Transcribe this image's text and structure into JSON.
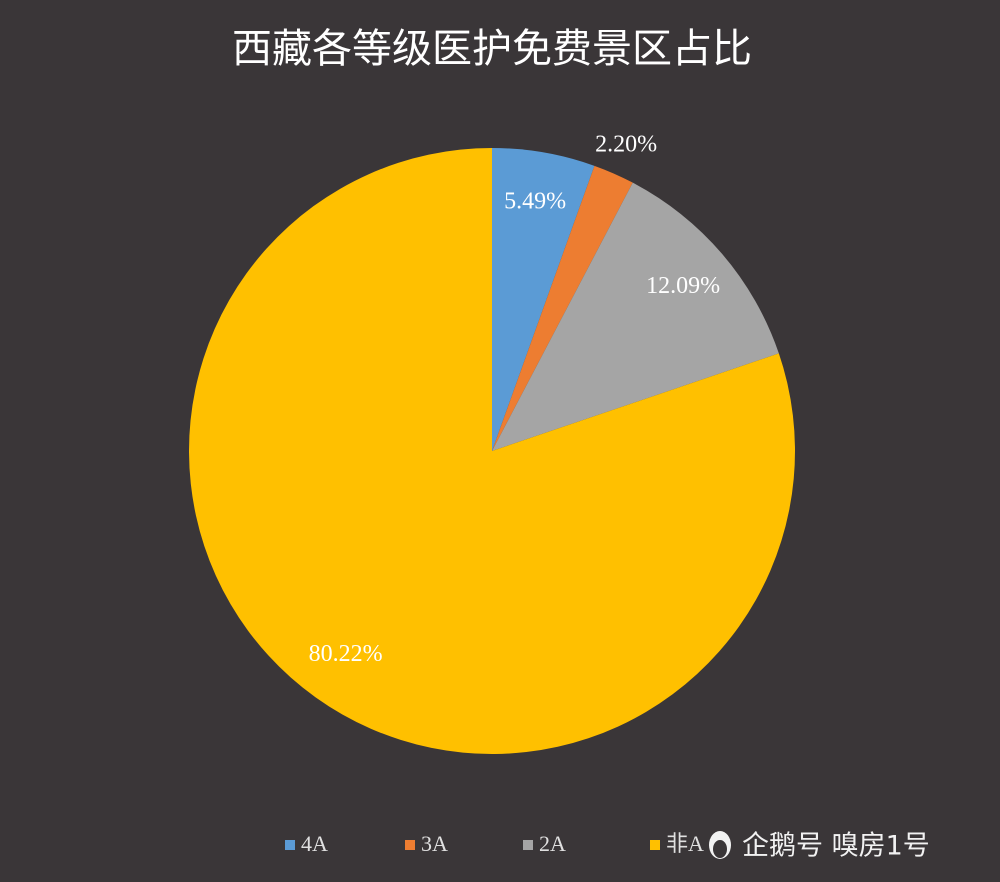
{
  "chart_data": {
    "type": "pie",
    "title": "西藏各等级医护免费景区占比",
    "categories": [
      "4A",
      "3A",
      "2A",
      "非A"
    ],
    "values": [
      5.49,
      2.2,
      12.09,
      80.22
    ],
    "value_labels": [
      "5.49%",
      "2.20%",
      "12.09%",
      "80.22%"
    ],
    "colors": [
      "#5b9bd5",
      "#ed7d31",
      "#a5a5a5",
      "#ffc000"
    ],
    "legend": "bottom",
    "watermark": "企鹅号 嗅房1号"
  }
}
